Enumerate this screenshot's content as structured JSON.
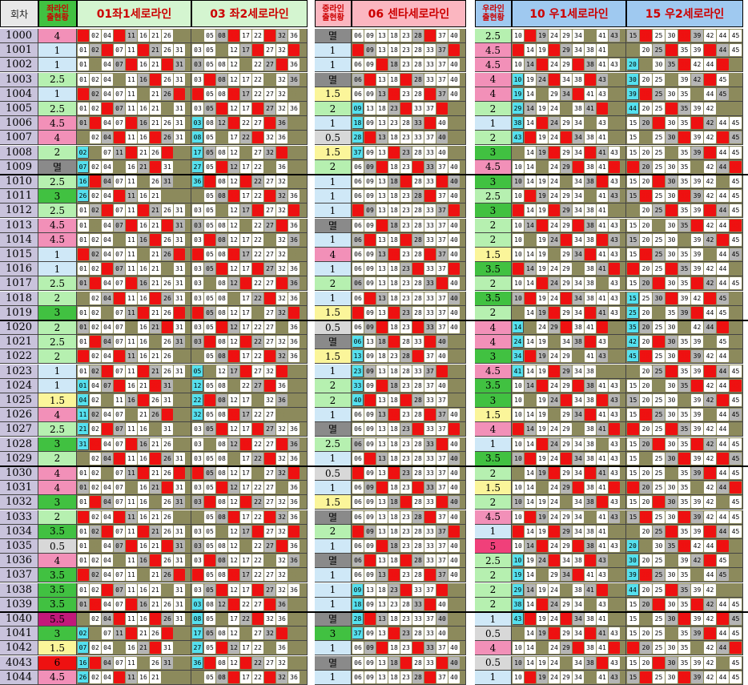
{
  "headers": {
    "round": "회차",
    "left_status": "좌라인\n출현황",
    "col1": "01좌1세로라인",
    "col2": "03 좌2세로라인",
    "center_status": "중라인\n출현황",
    "col3": "06 센타세로라인",
    "right_status": "우라인\n출현황",
    "col4": "10 우1세로라인",
    "col5": "15 우2세로라인"
  },
  "numbers": {
    "g1": [
      "01",
      "02",
      "04",
      "07",
      "11",
      "16",
      "21",
      "26",
      "31"
    ],
    "g2": [
      "03",
      "05",
      "08",
      "12",
      "17",
      "22",
      "27",
      "32",
      "36"
    ],
    "g3": [
      "06",
      "09",
      "13",
      "18",
      "23",
      "28",
      "33",
      "37",
      "40"
    ],
    "g4": [
      "10",
      "14",
      "19",
      "24",
      "29",
      "34",
      "38",
      "41",
      "43"
    ],
    "g5": [
      "15",
      "20",
      "25",
      "30",
      "35",
      "39",
      "42",
      "44",
      "45"
    ]
  },
  "colors": {
    "red": "#ee1111",
    "cyan": "#55e0ee",
    "blue_score": "#cfe8f7",
    "green_score": "#41c141",
    "pink_score": "#f290b8",
    "yellow_score": "#fbf59a",
    "gray_score": "#8a8a8a",
    "khaki": "#8c8a5c"
  },
  "rows": [
    {
      "id": "1000",
      "s1": "4",
      "s2": "멸",
      "s3": "2.5"
    },
    {
      "id": "1001",
      "s1": "1",
      "s2": "1",
      "s3": "4.5"
    },
    {
      "id": "1002",
      "s1": "1",
      "s2": "1",
      "s3": "4.5"
    },
    {
      "id": "1003",
      "s1": "2.5",
      "s2": "멸",
      "s3": "4"
    },
    {
      "id": "1004",
      "s1": "1",
      "s2": "1.5",
      "s3": "4"
    },
    {
      "id": "1005",
      "s1": "2.5",
      "s2": "2",
      "s3": "2"
    },
    {
      "id": "1006",
      "s1": "4.5",
      "s2": "1",
      "s3": "1"
    },
    {
      "id": "1007",
      "s1": "4",
      "s2": "0.5",
      "s3": "2"
    },
    {
      "id": "1008",
      "s1": "2",
      "s2": "1.5",
      "s3": "3"
    },
    {
      "id": "1009",
      "s1": "멸",
      "s2": "2",
      "s3": "4.5"
    },
    {
      "id": "1010",
      "s1": "2.5",
      "s2": "1",
      "s3": "3"
    },
    {
      "id": "1011",
      "s1": "3",
      "s2": "1",
      "s3": "2.5"
    },
    {
      "id": "1012",
      "s1": "2.5",
      "s2": "1",
      "s3": "3"
    },
    {
      "id": "1013",
      "s1": "4.5",
      "s2": "멸",
      "s3": "2"
    },
    {
      "id": "1014",
      "s1": "4.5",
      "s2": "1",
      "s3": "2"
    },
    {
      "id": "1015",
      "s1": "1",
      "s2": "4",
      "s3": "1.5"
    },
    {
      "id": "1016",
      "s1": "1",
      "s2": "1",
      "s3": "3.5"
    },
    {
      "id": "1017",
      "s1": "2.5",
      "s2": "2",
      "s3": "2"
    },
    {
      "id": "1018",
      "s1": "2",
      "s2": "1",
      "s3": "3.5"
    },
    {
      "id": "1019",
      "s1": "3",
      "s2": "1.5",
      "s3": "2"
    },
    {
      "id": "1020",
      "s1": "2",
      "s2": "0.5",
      "s3": "4"
    },
    {
      "id": "1021",
      "s1": "2.5",
      "s2": "멸",
      "s3": "4"
    },
    {
      "id": "1022",
      "s1": "2",
      "s2": "1.5",
      "s3": "3"
    },
    {
      "id": "1023",
      "s1": "1",
      "s2": "1",
      "s3": "4.5"
    },
    {
      "id": "1024",
      "s1": "1",
      "s2": "2",
      "s3": "3.5"
    },
    {
      "id": "1025",
      "s1": "1.5",
      "s2": "2",
      "s3": "3"
    },
    {
      "id": "1026",
      "s1": "4",
      "s2": "1",
      "s3": "1.5"
    },
    {
      "id": "1027",
      "s1": "2.5",
      "s2": "멸",
      "s3": "4"
    },
    {
      "id": "1028",
      "s1": "3",
      "s2": "2.5",
      "s3": "1"
    },
    {
      "id": "1029",
      "s1": "2",
      "s2": "1",
      "s3": "3.5"
    },
    {
      "id": "1030",
      "s1": "4",
      "s2": "0.5",
      "s3": "2"
    },
    {
      "id": "1031",
      "s1": "4",
      "s2": "1",
      "s3": "1.5"
    },
    {
      "id": "1032",
      "s1": "3",
      "s2": "1.5",
      "s3": "2"
    },
    {
      "id": "1033",
      "s1": "2",
      "s2": "멸",
      "s3": "4.5"
    },
    {
      "id": "1034",
      "s1": "3.5",
      "s2": "2",
      "s3": "1"
    },
    {
      "id": "1035",
      "s1": "0.5",
      "s2": "1",
      "s3": "5"
    },
    {
      "id": "1036",
      "s1": "4",
      "s2": "멸",
      "s3": "2.5"
    },
    {
      "id": "1037",
      "s1": "3.5",
      "s2": "1",
      "s3": "2"
    },
    {
      "id": "1038",
      "s1": "3.5",
      "s2": "1",
      "s3": "2"
    },
    {
      "id": "1039",
      "s1": "3.5",
      "s2": "1",
      "s3": "2"
    },
    {
      "id": "1040",
      "s1": "5.5",
      "s2": "멸",
      "s3": "1"
    },
    {
      "id": "1041",
      "s1": "3",
      "s2": "3",
      "s3": "0.5"
    },
    {
      "id": "1042",
      "s1": "1.5",
      "s2": "1",
      "s3": "4"
    },
    {
      "id": "4043",
      "s1": "6",
      "s2": "멸",
      "s3": "0.5"
    },
    {
      "id": "1044",
      "s1": "4.5",
      "s2": "1",
      "s3": "1"
    }
  ]
}
